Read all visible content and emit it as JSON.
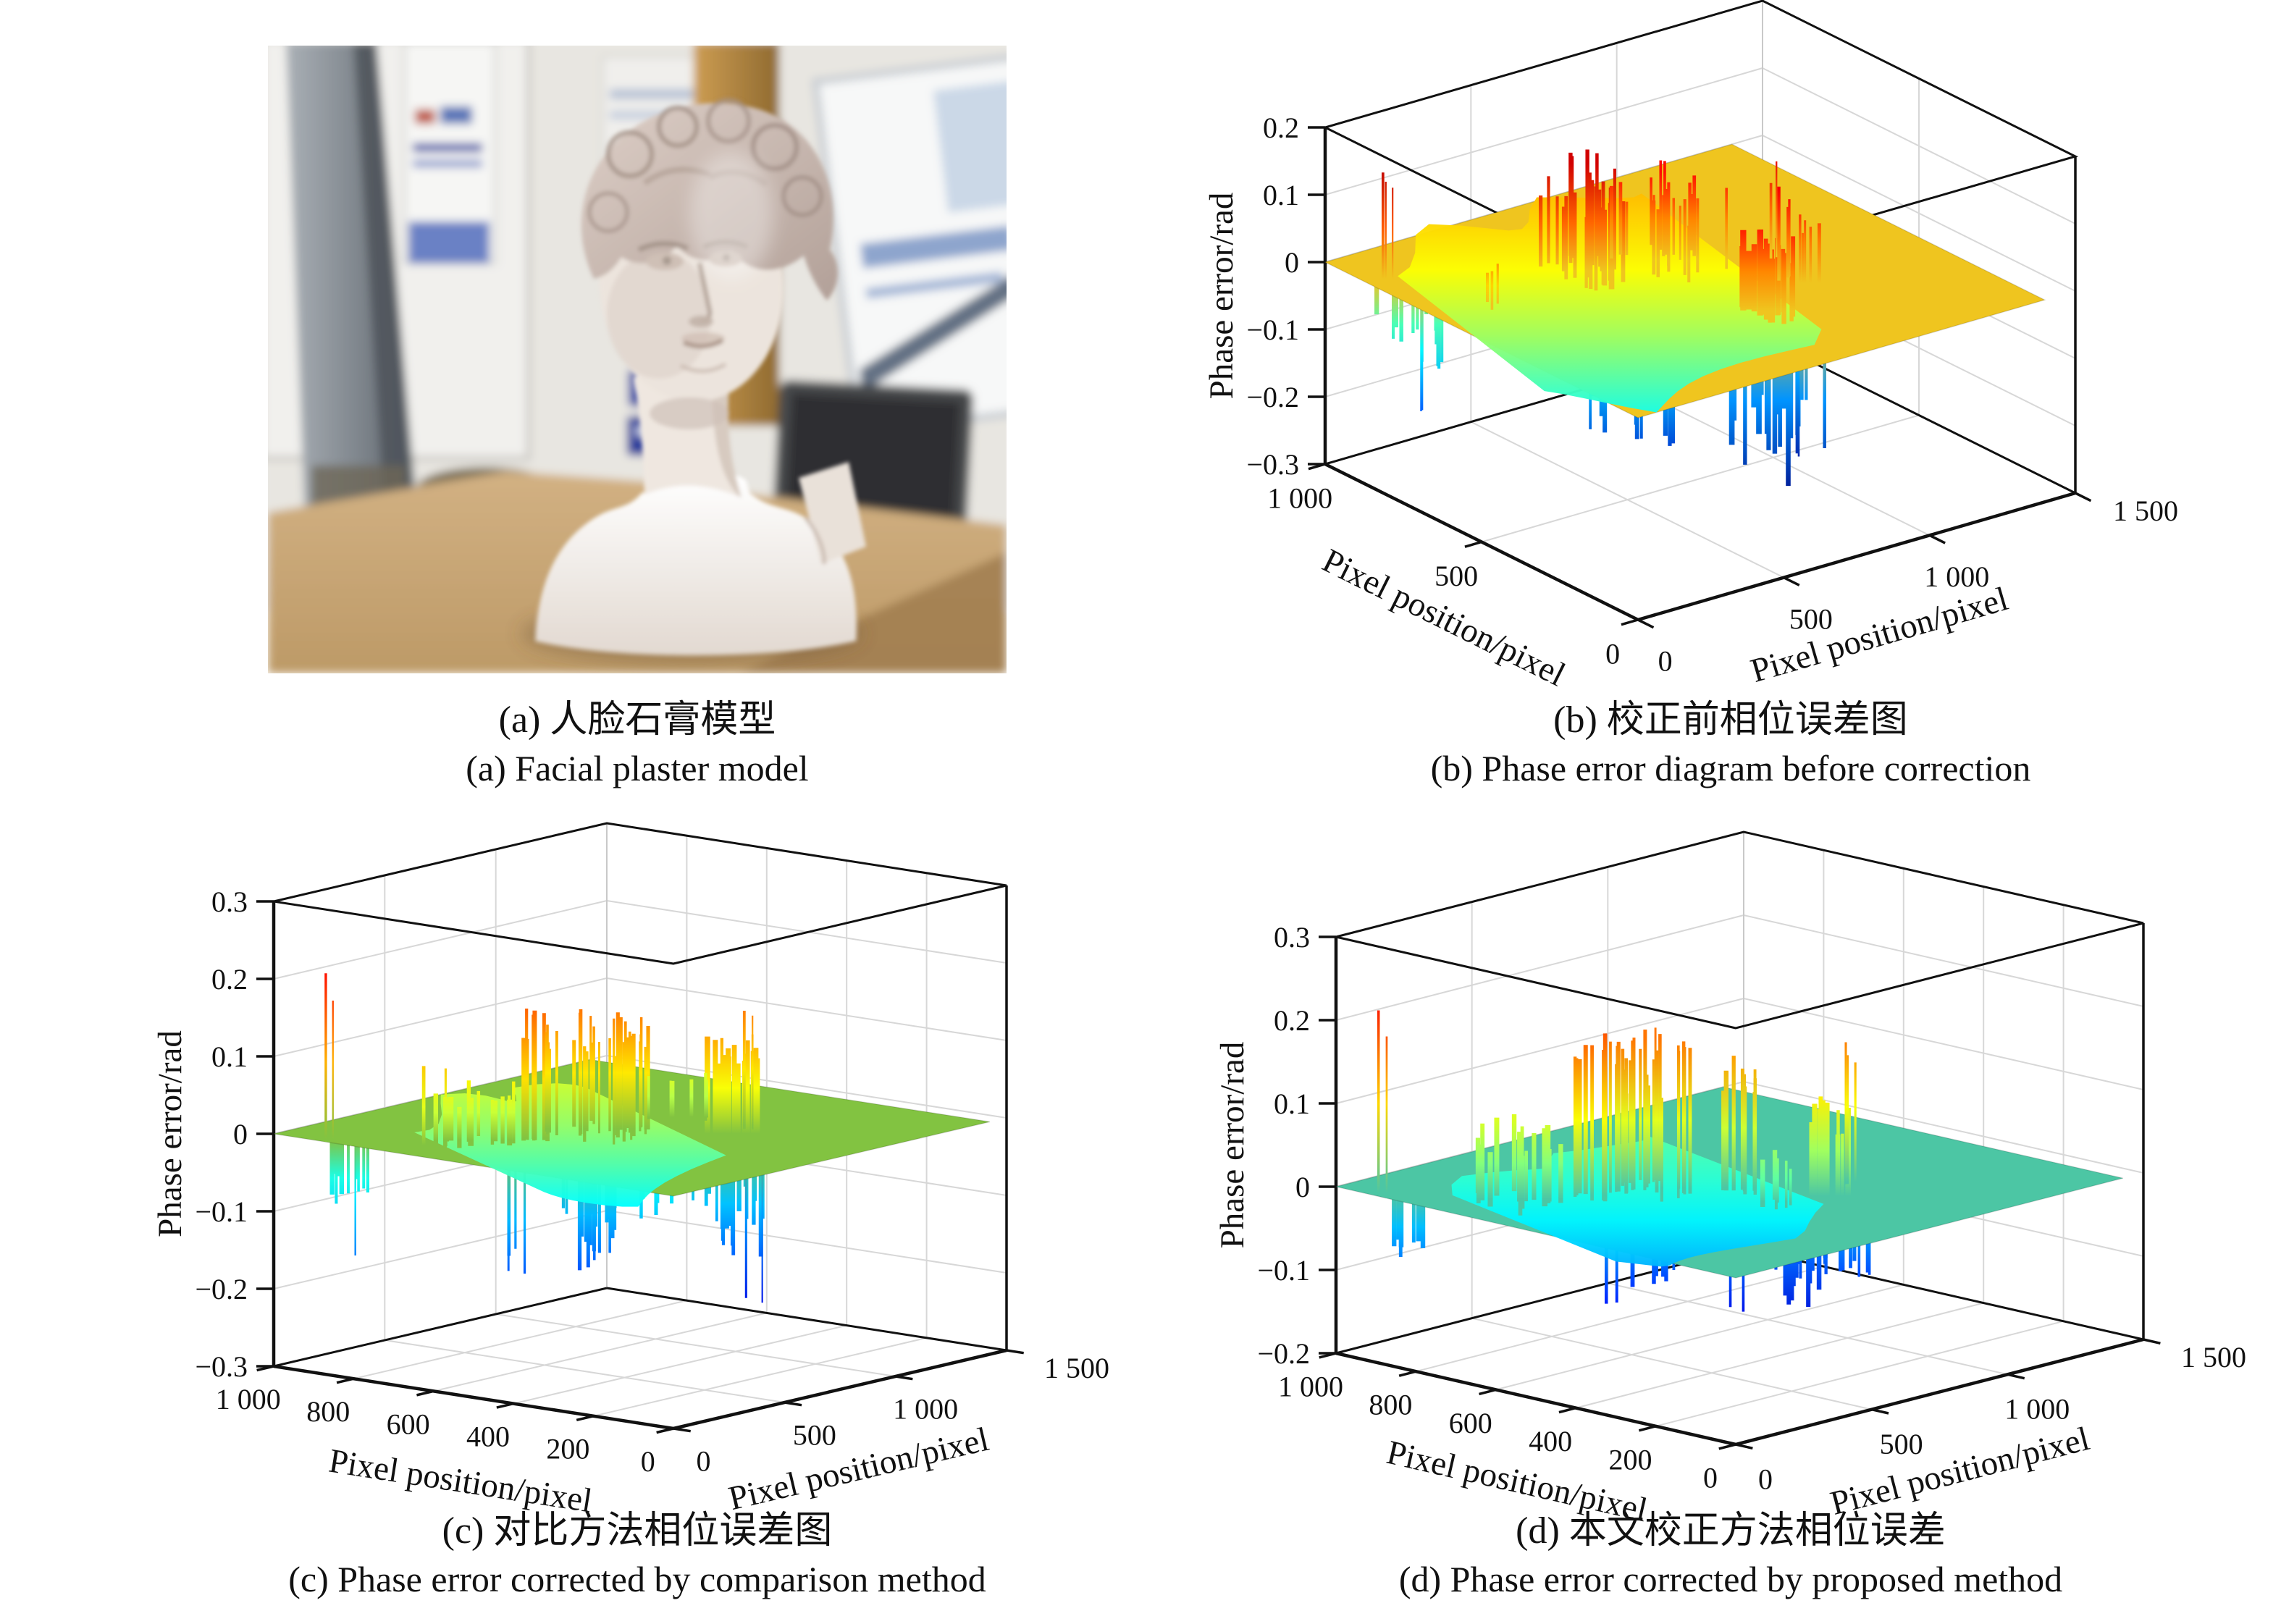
{
  "figure": {
    "panels": [
      {
        "letter": "(a)",
        "caption_zh": "(a) 人脸石膏模型",
        "caption_en": "(a) Facial plaster model"
      },
      {
        "letter": "(b)",
        "caption_zh": "(b) 校正前相位误差图",
        "caption_en": "(b) Phase error diagram before correction"
      },
      {
        "letter": "(c)",
        "caption_zh": "(c) 对比方法相位误差图",
        "caption_en": "(c) Phase error corrected by comparison method"
      },
      {
        "letter": "(d)",
        "caption_zh": "(d) 本文校正方法相位误差",
        "caption_en": "(d) Phase error corrected by proposed method"
      }
    ]
  },
  "chart_data": [
    {
      "id": "b",
      "type": "surface3d",
      "title_zh": "校正前相位误差图",
      "title_en": "Phase error diagram before correction",
      "zlabel": "Phase error/rad",
      "xlabel": "Pixel position/pixel",
      "ylabel": "Pixel position/pixel",
      "zlim": [
        -0.3,
        0.2
      ],
      "xlim": [
        0,
        1000
      ],
      "ylim": [
        0,
        1500
      ],
      "z_ticks": {
        "values": [
          0.2,
          0.1,
          0,
          -0.1,
          -0.2,
          -0.3
        ],
        "labels": [
          "0.2",
          "0.1",
          "0",
          "−0.1",
          "−0.2",
          "−0.3"
        ]
      },
      "x_ticks": {
        "values": [
          1000,
          500,
          0
        ],
        "labels": [
          "1 000",
          "500",
          "0"
        ]
      },
      "y_ticks": {
        "values": [
          0,
          500,
          1000,
          1500
        ],
        "labels": [
          "0",
          "500",
          "1 000",
          "1 500"
        ]
      },
      "grid": true,
      "colormap": "jet",
      "plane": {
        "level": 0,
        "color": "#efc51f",
        "u_extent": 0.93
      },
      "mound": {
        "u": [
          0.04,
          0.62
        ],
        "v": [
          0.25,
          0.95
        ],
        "top": 0.045,
        "bottom": -0.1
      },
      "up_spikes": [
        {
          "u": [
            0.04,
            0.06
          ],
          "v": [
            0.82,
            0.88
          ],
          "n": 3,
          "h": [
            0.1,
            0.17
          ],
          "w": 3
        },
        {
          "u": [
            0.3,
            0.42
          ],
          "v": [
            0.55,
            0.75
          ],
          "n": 26,
          "h": [
            0.06,
            0.16
          ],
          "w": 5
        },
        {
          "u": [
            0.42,
            0.58
          ],
          "v": [
            0.5,
            0.72
          ],
          "n": 22,
          "h": [
            0.05,
            0.13
          ],
          "w": 4
        },
        {
          "u": [
            0.47,
            0.53
          ],
          "v": [
            0.22,
            0.34
          ],
          "n": 18,
          "h": [
            0.06,
            0.13
          ],
          "w": 7
        },
        {
          "u": [
            0.6,
            0.64
          ],
          "v": [
            0.3,
            0.42
          ],
          "n": 8,
          "h": [
            0.05,
            0.14
          ],
          "w": 4
        },
        {
          "u": [
            0.11,
            0.14
          ],
          "v": [
            0.6,
            0.66
          ],
          "n": 3,
          "h": [
            0.03,
            0.06
          ],
          "w": 4
        },
        {
          "u": [
            0.66,
            0.68
          ],
          "v": [
            0.48,
            0.52
          ],
          "n": 2,
          "h": [
            0.08,
            0.15
          ],
          "w": 3
        }
      ],
      "down_spikes": [
        {
          "u": [
            0.03,
            0.1
          ],
          "v": [
            0.72,
            0.92
          ],
          "n": 14,
          "h": [
            -0.14,
            -0.05
          ],
          "w": 5
        },
        {
          "u": [
            0.05,
            0.07
          ],
          "v": [
            0.78,
            0.82
          ],
          "n": 2,
          "h": [
            -0.21,
            -0.18
          ],
          "w": 3
        },
        {
          "u": [
            0.26,
            0.4
          ],
          "v": [
            0.38,
            0.55
          ],
          "n": 24,
          "h": [
            -0.27,
            -0.08
          ],
          "w": 5
        },
        {
          "u": [
            0.45,
            0.58
          ],
          "v": [
            0.18,
            0.38
          ],
          "n": 26,
          "h": [
            -0.3,
            -0.1
          ],
          "w": 6
        },
        {
          "u": [
            0.6,
            0.63
          ],
          "v": [
            0.28,
            0.36
          ],
          "n": 3,
          "h": [
            -0.29,
            -0.2
          ],
          "w": 3
        },
        {
          "u": [
            0.33,
            0.5
          ],
          "v": [
            0.55,
            0.68
          ],
          "n": 12,
          "h": [
            -0.1,
            -0.04
          ],
          "w": 4
        }
      ]
    },
    {
      "id": "c",
      "type": "surface3d",
      "title_zh": "对比方法相位误差图",
      "title_en": "Phase error corrected by comparison method",
      "zlabel": "Phase error/rad",
      "xlabel": "Pixel position/pixel",
      "ylabel": "Pixel position/pixel",
      "zlim": [
        -0.3,
        0.3
      ],
      "xlim": [
        0,
        1000
      ],
      "ylim": [
        0,
        1500
      ],
      "z_ticks": {
        "values": [
          0.3,
          0.2,
          0.1,
          0,
          -0.1,
          -0.2,
          -0.3
        ],
        "labels": [
          "0.3",
          "0.2",
          "0.1",
          "0",
          "−0.1",
          "−0.2",
          "−0.3"
        ]
      },
      "x_ticks": {
        "values": [
          1000,
          800,
          600,
          400,
          200,
          0
        ],
        "labels": [
          "1 000",
          "800",
          "600",
          "400",
          "200",
          "0"
        ]
      },
      "y_ticks": {
        "values": [
          0,
          500,
          1000,
          1500
        ],
        "labels": [
          "0",
          "500",
          "1 000",
          "1 500"
        ]
      },
      "grid": true,
      "colormap": "jet",
      "plane": {
        "level": 0,
        "color": "#82c341",
        "u_extent": 0.95
      },
      "mound": {
        "u": [
          0.1,
          0.6
        ],
        "v": [
          0.35,
          0.8
        ],
        "top": 0.045,
        "bottom": -0.075
      },
      "up_spikes": [
        {
          "u": [
            0.02,
            0.04
          ],
          "v": [
            0.86,
            0.9
          ],
          "n": 2,
          "h": [
            0.15,
            0.22
          ],
          "w": 3
        },
        {
          "u": [
            0.09,
            0.11
          ],
          "v": [
            0.66,
            0.72
          ],
          "n": 3,
          "h": [
            0.08,
            0.11
          ],
          "w": 4
        },
        {
          "u": [
            0.13,
            0.26
          ],
          "v": [
            0.56,
            0.74
          ],
          "n": 14,
          "h": [
            0.03,
            0.08
          ],
          "w": 6
        },
        {
          "u": [
            0.27,
            0.3
          ],
          "v": [
            0.52,
            0.62
          ],
          "n": 8,
          "h": [
            0.1,
            0.17
          ],
          "w": 5
        },
        {
          "u": [
            0.33,
            0.52
          ],
          "v": [
            0.44,
            0.66
          ],
          "n": 30,
          "h": [
            0.07,
            0.16
          ],
          "w": 4
        },
        {
          "u": [
            0.53,
            0.58
          ],
          "v": [
            0.26,
            0.36
          ],
          "n": 16,
          "h": [
            0.06,
            0.13
          ],
          "w": 6
        },
        {
          "u": [
            0.62,
            0.64
          ],
          "v": [
            0.32,
            0.38
          ],
          "n": 3,
          "h": [
            0.09,
            0.16
          ],
          "w": 3
        },
        {
          "u": [
            0.58,
            0.68
          ],
          "v": [
            0.4,
            0.55
          ],
          "n": 6,
          "h": [
            0.03,
            0.06
          ],
          "w": 4
        }
      ],
      "down_spikes": [
        {
          "u": [
            0.03,
            0.06
          ],
          "v": [
            0.8,
            0.9
          ],
          "n": 10,
          "h": [
            -0.11,
            -0.04
          ],
          "w": 5
        },
        {
          "u": [
            0.05,
            0.06
          ],
          "v": [
            0.84,
            0.86
          ],
          "n": 1,
          "h": [
            -0.15,
            -0.15
          ],
          "w": 3
        },
        {
          "u": [
            0.19,
            0.21
          ],
          "v": [
            0.52,
            0.58
          ],
          "n": 4,
          "h": [
            -0.21,
            -0.12
          ],
          "w": 4
        },
        {
          "u": [
            0.26,
            0.38
          ],
          "v": [
            0.4,
            0.56
          ],
          "n": 22,
          "h": [
            -0.21,
            -0.07
          ],
          "w": 5
        },
        {
          "u": [
            0.4,
            0.44
          ],
          "v": [
            0.36,
            0.44
          ],
          "n": 8,
          "h": [
            -0.13,
            -0.06
          ],
          "w": 5
        },
        {
          "u": [
            0.5,
            0.62
          ],
          "v": [
            0.22,
            0.38
          ],
          "n": 24,
          "h": [
            -0.2,
            -0.07
          ],
          "w": 5
        },
        {
          "u": [
            0.6,
            0.62
          ],
          "v": [
            0.28,
            0.32
          ],
          "n": 2,
          "h": [
            -0.24,
            -0.21
          ],
          "w": 3
        }
      ]
    },
    {
      "id": "d",
      "type": "surface3d",
      "title_zh": "本文校正方法相位误差",
      "title_en": "Phase error corrected by proposed method",
      "zlabel": "Phase error/rad",
      "xlabel": "Pixel position/pixel",
      "ylabel": "Pixel position/pixel",
      "zlim": [
        -0.2,
        0.3
      ],
      "xlim": [
        0,
        1000
      ],
      "ylim": [
        0,
        1500
      ],
      "z_ticks": {
        "values": [
          0.3,
          0.2,
          0.1,
          0,
          -0.1,
          -0.2
        ],
        "labels": [
          "0.3",
          "0.2",
          "0.1",
          "0",
          "−0.1",
          "−0.2"
        ]
      },
      "x_ticks": {
        "values": [
          1000,
          800,
          600,
          400,
          200,
          0
        ],
        "labels": [
          "1 000",
          "800",
          "600",
          "400",
          "200",
          "0"
        ]
      },
      "y_ticks": {
        "values": [
          0,
          500,
          1000,
          1500
        ],
        "labels": [
          "0",
          "500",
          "1 000",
          "1 500"
        ]
      },
      "grid": true,
      "colormap": "jet",
      "plane": {
        "level": 0,
        "color": "#4cc6a4",
        "u_extent": 0.95
      },
      "mound": {
        "u": [
          0.05,
          0.58
        ],
        "v": [
          0.3,
          0.82
        ],
        "top": 0.03,
        "bottom": -0.05
      },
      "up_spikes": [
        {
          "u": [
            0.015,
            0.03
          ],
          "v": [
            0.88,
            0.92
          ],
          "n": 2,
          "h": [
            0.16,
            0.24
          ],
          "w": 3
        },
        {
          "u": [
            0.07,
            0.2
          ],
          "v": [
            0.62,
            0.8
          ],
          "n": 16,
          "h": [
            0.04,
            0.095
          ],
          "w": 6
        },
        {
          "u": [
            0.24,
            0.27
          ],
          "v": [
            0.56,
            0.66
          ],
          "n": 8,
          "h": [
            0.12,
            0.2
          ],
          "w": 5
        },
        {
          "u": [
            0.3,
            0.42
          ],
          "v": [
            0.48,
            0.66
          ],
          "n": 26,
          "h": [
            0.08,
            0.18
          ],
          "w": 4
        },
        {
          "u": [
            0.44,
            0.48
          ],
          "v": [
            0.42,
            0.5
          ],
          "n": 10,
          "h": [
            0.08,
            0.16
          ],
          "w": 5
        },
        {
          "u": [
            0.5,
            0.54
          ],
          "v": [
            0.26,
            0.34
          ],
          "n": 14,
          "h": [
            0.05,
            0.12
          ],
          "w": 6
        },
        {
          "u": [
            0.6,
            0.62
          ],
          "v": [
            0.33,
            0.37
          ],
          "n": 3,
          "h": [
            0.12,
            0.2
          ],
          "w": 3
        },
        {
          "u": [
            0.4,
            0.46
          ],
          "v": [
            0.3,
            0.38
          ],
          "n": 6,
          "h": [
            0.03,
            0.06
          ],
          "w": 5
        }
      ],
      "down_spikes": [
        {
          "u": [
            0.015,
            0.05
          ],
          "v": [
            0.82,
            0.88
          ],
          "n": 8,
          "h": [
            -0.08,
            -0.05
          ],
          "w": 6
        },
        {
          "u": [
            0.21,
            0.23
          ],
          "v": [
            0.52,
            0.58
          ],
          "n": 3,
          "h": [
            -0.13,
            -0.1
          ],
          "w": 4
        },
        {
          "u": [
            0.28,
            0.34
          ],
          "v": [
            0.46,
            0.56
          ],
          "n": 10,
          "h": [
            -0.13,
            -0.06
          ],
          "w": 5
        },
        {
          "u": [
            0.46,
            0.52
          ],
          "v": [
            0.26,
            0.38
          ],
          "n": 18,
          "h": [
            -0.16,
            -0.07
          ],
          "w": 5
        },
        {
          "u": [
            0.54,
            0.58
          ],
          "v": [
            0.24,
            0.3
          ],
          "n": 8,
          "h": [
            -0.12,
            -0.06
          ],
          "w": 4
        },
        {
          "u": [
            0.39,
            0.41
          ],
          "v": [
            0.38,
            0.42
          ],
          "n": 2,
          "h": [
            -0.15,
            -0.12
          ],
          "w": 3
        }
      ]
    }
  ]
}
